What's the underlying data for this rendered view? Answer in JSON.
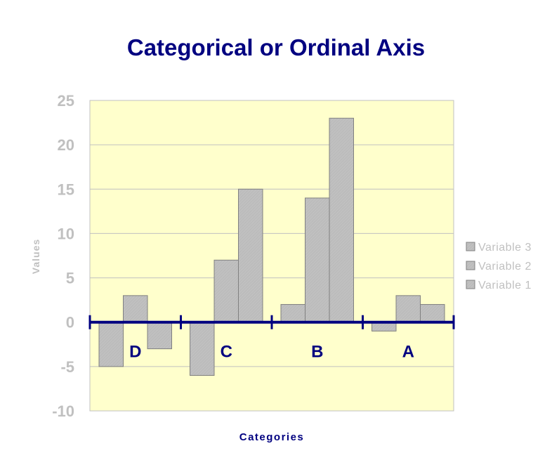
{
  "chart_data": {
    "type": "bar",
    "title": "Categorical or Ordinal Axis",
    "xlabel": "Categories",
    "ylabel": "Values",
    "categories": [
      "D",
      "C",
      "B",
      "A"
    ],
    "series": [
      {
        "name": "Variable 1",
        "values": [
          -5,
          -6,
          2,
          -1
        ]
      },
      {
        "name": "Variable 2",
        "values": [
          3,
          7,
          14,
          3
        ]
      },
      {
        "name": "Variable 3",
        "values": [
          -3,
          15,
          23,
          2
        ]
      }
    ],
    "ylim": [
      -10,
      25
    ],
    "yticks": [
      "-10",
      "-5",
      "0",
      "5",
      "10",
      "15",
      "20",
      "25"
    ],
    "grid": true,
    "legend_position": "right",
    "legend_order": [
      "Variable 3",
      "Variable 2",
      "Variable 1"
    ],
    "colors": {
      "plot_background": "#ffffcc",
      "bar_fill": "#c0c0c0",
      "bar_stroke": "#808080",
      "gridline": "#c0c0c0",
      "category_axis": "#000080",
      "title": "#000080",
      "tick_text": "#c0c0c0"
    }
  }
}
